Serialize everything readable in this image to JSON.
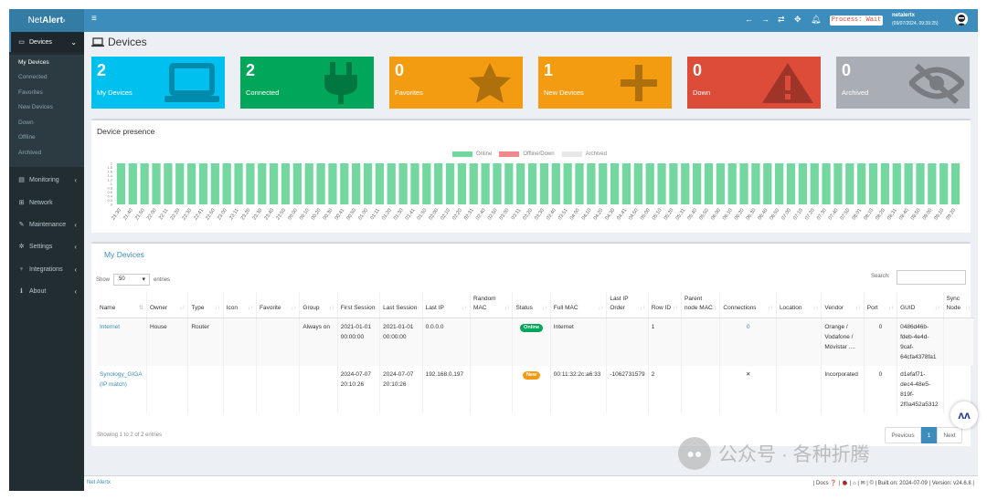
{
  "brand": {
    "name": "Net",
    "name_bold": "Alert",
    "sup": "x"
  },
  "topbar": {
    "menu_icon": "hamburger-icon",
    "icons": [
      "arrow-left-icon",
      "arrow-right-icon",
      "refresh-icon",
      "move-icon",
      "bell-icon"
    ],
    "status": "Process: Wait",
    "user_name": "netalertx",
    "user_datetime": "(09/07/2024, 09:39:25)"
  },
  "sidebar": {
    "devices_label": "Devices",
    "devices_sub": [
      "My Devices",
      "Connected",
      "Favorites",
      "New Devices",
      "Down",
      "Offline",
      "Archived"
    ],
    "items": [
      {
        "label": "Monitoring",
        "icon": "monitoring-icon",
        "chevron": true
      },
      {
        "label": "Network",
        "icon": "network-icon",
        "chevron": false
      },
      {
        "label": "Maintenance",
        "icon": "wrench-icon",
        "chevron": true
      },
      {
        "label": "Settings",
        "icon": "gear-icon",
        "chevron": true
      },
      {
        "label": "Integrations",
        "icon": "plug-icon",
        "chevron": true
      },
      {
        "label": "About",
        "icon": "info-icon",
        "chevron": true
      }
    ]
  },
  "page_title": "Devices",
  "tiles": [
    {
      "count": "2",
      "label": "My Devices",
      "color": "#00c0ef",
      "icon": "laptop-icon"
    },
    {
      "count": "2",
      "label": "Connected",
      "color": "#00a65a",
      "icon": "plug-icon"
    },
    {
      "count": "0",
      "label": "Favorites",
      "color": "#f39c12",
      "icon": "star-icon"
    },
    {
      "count": "1",
      "label": "New Devices",
      "color": "#f39c12",
      "icon": "plus-icon"
    },
    {
      "count": "0",
      "label": "Down",
      "color": "#dd4b39",
      "icon": "warning-icon"
    },
    {
      "count": "0",
      "label": "Archived",
      "color": "#a9aeb5",
      "icon": "eye-slash-icon"
    }
  ],
  "presence": {
    "title": "Device presence",
    "legend": [
      {
        "label": "Online",
        "color": "#74d7a0"
      },
      {
        "label": "Offline/Down",
        "color": "#f08a8a"
      },
      {
        "label": "Archived",
        "color": "#e8e8e8"
      }
    ],
    "y_ticks": [
      "2",
      "1.8",
      "1.6",
      "1.4",
      "1.2",
      "1",
      "0.8",
      "0.6",
      "0.4",
      "0.2",
      "0"
    ]
  },
  "chart_data": {
    "type": "bar",
    "title": "Device presence",
    "series": [
      {
        "name": "Online",
        "values": "all 2"
      }
    ],
    "categories": [
      "21:30",
      "21:40",
      "21:50",
      "22:00",
      "22:11",
      "22:20",
      "22:30",
      "22:41",
      "22:50",
      "23:00",
      "23:11",
      "23:20",
      "23:30",
      "23:40",
      "23:50",
      "00:00",
      "00:10",
      "00:20",
      "00:30",
      "00:41",
      "00:50",
      "01:00",
      "01:11",
      "01:20",
      "01:30",
      "01:41",
      "01:50",
      "02:00",
      "02:10",
      "02:20",
      "02:31",
      "02:40",
      "02:50",
      "03:00",
      "03:11",
      "03:20",
      "03:30",
      "03:40",
      "03:51",
      "04:00",
      "04:10",
      "04:20",
      "04:30",
      "04:41",
      "04:50",
      "05:00",
      "05:10",
      "05:20",
      "05:31",
      "05:40",
      "05:50",
      "06:00",
      "06:10",
      "06:20",
      "06:30",
      "06:40",
      "06:50",
      "07:00",
      "07:10",
      "07:20",
      "07:30",
      "07:40",
      "07:50",
      "08:01",
      "08:10",
      "08:20",
      "08:31",
      "08:40",
      "08:50",
      "09:00",
      "09:10",
      "09:20"
    ],
    "values": [
      2,
      2,
      2,
      2,
      2,
      2,
      2,
      2,
      2,
      2,
      2,
      2,
      2,
      2,
      2,
      2,
      2,
      2,
      2,
      2,
      2,
      2,
      2,
      2,
      2,
      2,
      2,
      2,
      2,
      2,
      2,
      2,
      2,
      2,
      2,
      2,
      2,
      2,
      2,
      2,
      2,
      2,
      2,
      2,
      2,
      2,
      2,
      2,
      2,
      2,
      2,
      2,
      2,
      2,
      2,
      2,
      2,
      2,
      2,
      2,
      2,
      2,
      2,
      2,
      2,
      2,
      2,
      2,
      2,
      2,
      2,
      2
    ],
    "ylim": [
      0,
      2
    ]
  },
  "devices_box": {
    "title": "My Devices",
    "show_label": "Show",
    "show_value": "50",
    "entries_label": "entries",
    "search_label": "Search:",
    "showing": "Showing 1 to 2 of 2 entries",
    "pager": {
      "prev": "Previous",
      "page": "1",
      "next": "Next"
    }
  },
  "table": {
    "columns": [
      "Name",
      "Owner",
      "Type",
      "Icon",
      "Favorite",
      "Group",
      "First Session",
      "Last Session",
      "Last IP",
      "Random MAC",
      "Status",
      "Full MAC",
      "Last IP Order",
      "Row ID",
      "Parent node MAC",
      "Connections",
      "Location",
      "Vendor",
      "Port",
      "GUID",
      "Sync Node"
    ],
    "rows": [
      [
        "Internet",
        "House",
        "Router",
        "",
        "",
        "Always on",
        "2021-01-01 00:00:00",
        "2021-01-01 00:00:00",
        "0.0.0.0",
        "",
        "Online",
        "Internet",
        "",
        "1",
        "",
        "0",
        "",
        "Orange / Vodafone / Movistar ....",
        "0",
        "0486d46b-fdeb-4e4d-9caf-64cfa4378fa1",
        ""
      ],
      [
        "Synology_GIGA (IP match)",
        "",
        "",
        "",
        "",
        "",
        "2024-07-07 20:10:26",
        "2024-07-07 20:10:26",
        "192.168.0.197",
        "",
        "New",
        "00:11:32:2c:a6:33",
        "-1062731579",
        "2",
        "",
        "✕",
        "",
        "Incorporated",
        "0",
        "d1efaf71-dec4-48e5-819f-2f0a452a5312",
        ""
      ]
    ],
    "status_colors": {
      "Online": "#00a65a",
      "New": "#f39c12"
    }
  },
  "footer": {
    "left": "Net Alertx",
    "right": "| Docs ❓ | 🐞 | ⌂ | ✉ | © | Built on: 2024-07-09 | Version: v24.6.8 |"
  },
  "watermark": "公众号 · 各种折腾"
}
